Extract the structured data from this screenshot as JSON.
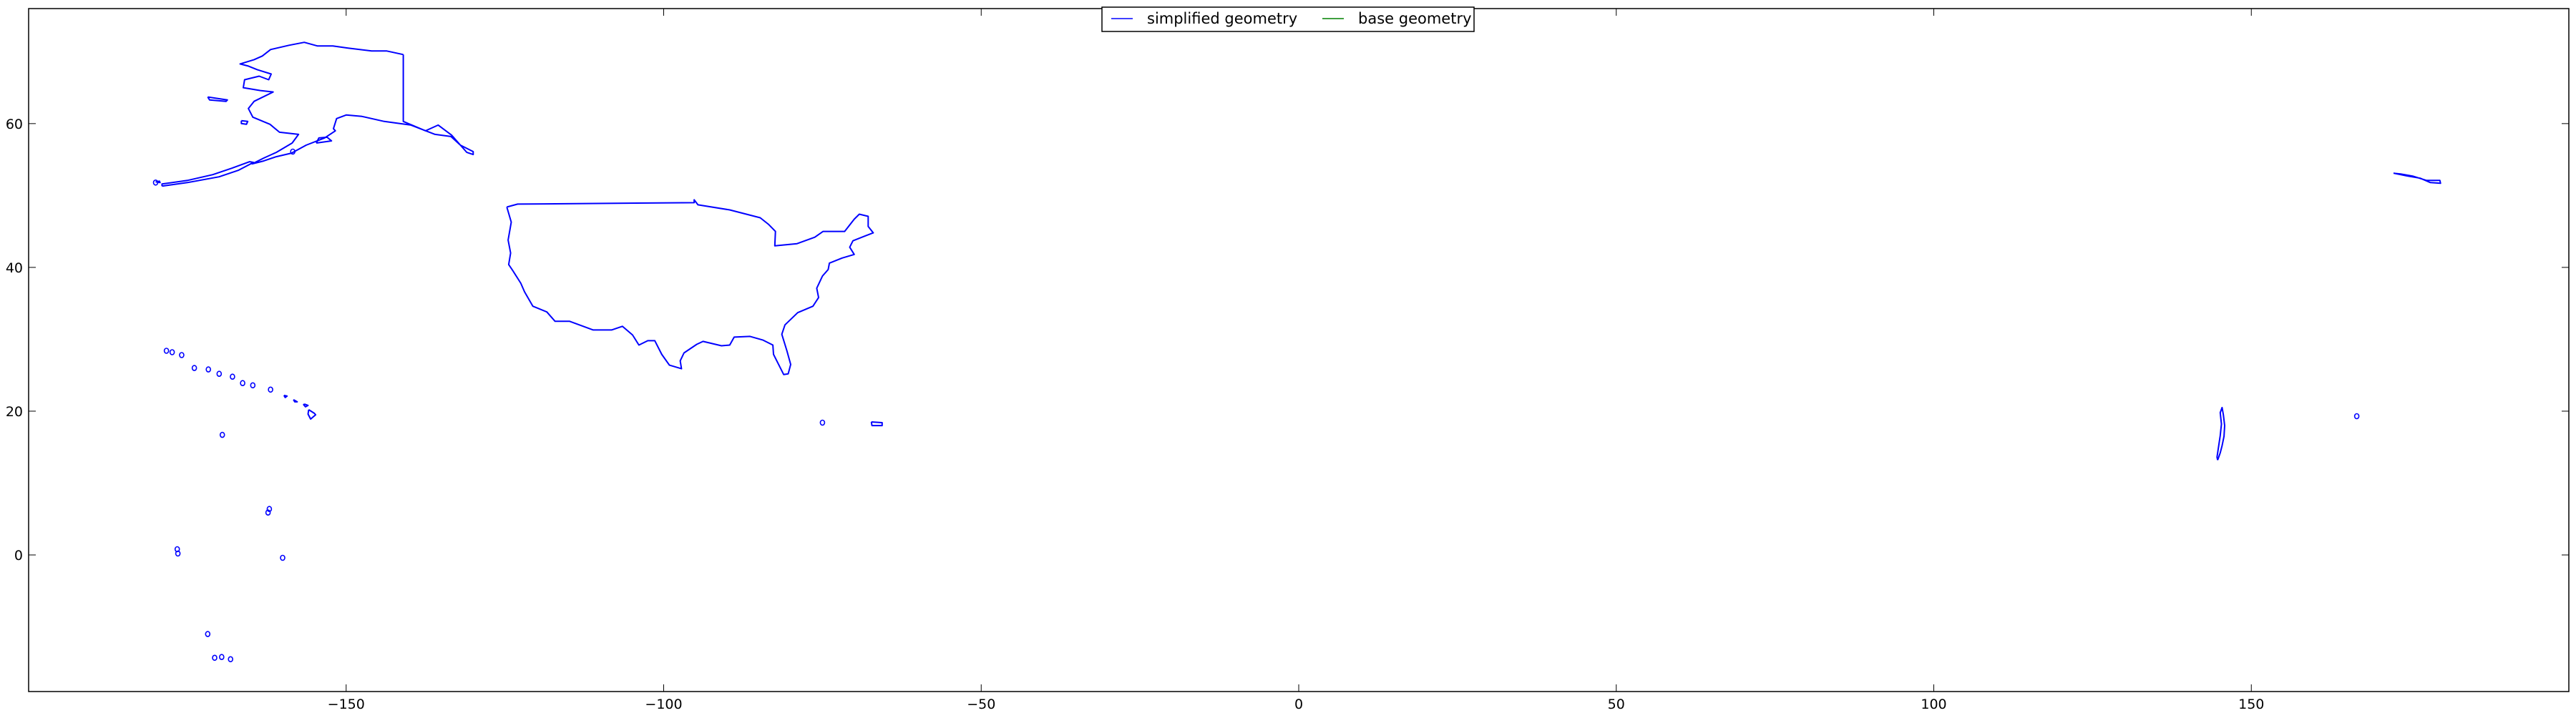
{
  "chart_data": {
    "type": "line",
    "title": "",
    "xlabel": "",
    "ylabel": "",
    "xlim": [
      -200,
      200
    ],
    "ylim": [
      -19,
      76
    ],
    "x_ticks": [
      -150,
      -100,
      -50,
      0,
      50,
      100,
      150
    ],
    "x_tick_labels": [
      "−150",
      "−100",
      "−50",
      "0",
      "50",
      "100",
      "150"
    ],
    "y_ticks": [
      0,
      20,
      40,
      60
    ],
    "y_tick_labels": [
      "0",
      "20",
      "40",
      "60"
    ],
    "grid": false,
    "legend": {
      "placement": "upper center",
      "ncol": 2,
      "entries": [
        {
          "label": "simplified geometry",
          "color": "#0000ff"
        },
        {
          "label": "base geometry",
          "color": "#008000"
        }
      ]
    },
    "series": [
      {
        "name": "simplified geometry",
        "color": "#0000ff",
        "polygons": [
          {
            "region": "Contiguous United States",
            "points": [
              [
                -124.7,
                48.4
              ],
              [
                -123.0,
                48.8
              ],
              [
                -95.2,
                49.0
              ],
              [
                -95.2,
                49.4
              ],
              [
                -94.6,
                48.7
              ],
              [
                -89.6,
                48.0
              ],
              [
                -84.8,
                46.9
              ],
              [
                -83.5,
                46.0
              ],
              [
                -82.4,
                45.0
              ],
              [
                -82.5,
                43.0
              ],
              [
                -79.0,
                43.3
              ],
              [
                -76.2,
                44.2
              ],
              [
                -74.9,
                45.0
              ],
              [
                -71.5,
                45.0
              ],
              [
                -70.0,
                46.7
              ],
              [
                -69.2,
                47.4
              ],
              [
                -67.8,
                47.1
              ],
              [
                -67.8,
                45.7
              ],
              [
                -67.0,
                44.8
              ],
              [
                -68.5,
                44.3
              ],
              [
                -70.2,
                43.7
              ],
              [
                -70.7,
                42.8
              ],
              [
                -70.0,
                41.8
              ],
              [
                -71.9,
                41.3
              ],
              [
                -73.9,
                40.6
              ],
              [
                -74.1,
                39.7
              ],
              [
                -75.0,
                38.8
              ],
              [
                -75.9,
                37.1
              ],
              [
                -75.6,
                35.8
              ],
              [
                -76.5,
                34.6
              ],
              [
                -78.9,
                33.7
              ],
              [
                -80.9,
                32.0
              ],
              [
                -81.4,
                30.7
              ],
              [
                -80.6,
                28.4
              ],
              [
                -80.0,
                26.5
              ],
              [
                -80.4,
                25.2
              ],
              [
                -81.1,
                25.1
              ],
              [
                -81.9,
                26.5
              ],
              [
                -82.7,
                27.9
              ],
              [
                -82.8,
                29.2
              ],
              [
                -84.4,
                29.9
              ],
              [
                -86.4,
                30.4
              ],
              [
                -88.9,
                30.3
              ],
              [
                -89.6,
                29.2
              ],
              [
                -90.9,
                29.1
              ],
              [
                -93.8,
                29.7
              ],
              [
                -94.8,
                29.3
              ],
              [
                -96.8,
                28.1
              ],
              [
                -97.4,
                27.0
              ],
              [
                -97.2,
                25.9
              ],
              [
                -99.1,
                26.4
              ],
              [
                -100.3,
                27.9
              ],
              [
                -101.4,
                29.8
              ],
              [
                -102.5,
                29.8
              ],
              [
                -103.9,
                29.2
              ],
              [
                -104.9,
                30.6
              ],
              [
                -106.5,
                31.8
              ],
              [
                -108.2,
                31.3
              ],
              [
                -111.1,
                31.3
              ],
              [
                -114.8,
                32.5
              ],
              [
                -117.1,
                32.5
              ],
              [
                -118.4,
                33.8
              ],
              [
                -120.6,
                34.6
              ],
              [
                -121.9,
                36.6
              ],
              [
                -122.5,
                37.8
              ],
              [
                -123.8,
                39.6
              ],
              [
                -124.4,
                40.4
              ],
              [
                -124.1,
                42.0
              ],
              [
                -124.5,
                43.8
              ],
              [
                -124.0,
                46.3
              ],
              [
                -124.7,
                48.4
              ]
            ]
          },
          {
            "region": "Alaska",
            "points": [
              [
                -141.0,
                69.6
              ],
              [
                -141.0,
                60.3
              ],
              [
                -137.5,
                59.0
              ],
              [
                -135.5,
                59.8
              ],
              [
                -133.4,
                58.4
              ],
              [
                -131.0,
                56.0
              ],
              [
                -130.0,
                55.7
              ],
              [
                -130.0,
                56.1
              ],
              [
                -132.0,
                57.0
              ],
              [
                -133.5,
                58.2
              ],
              [
                -136.0,
                58.5
              ],
              [
                -139.8,
                59.8
              ],
              [
                -144.0,
                60.3
              ],
              [
                -147.5,
                61.0
              ],
              [
                -150.0,
                61.2
              ],
              [
                -151.5,
                60.7
              ],
              [
                -152.0,
                59.3
              ],
              [
                -151.7,
                59.0
              ],
              [
                -153.4,
                58.0
              ],
              [
                -156.3,
                57.0
              ],
              [
                -158.6,
                55.9
              ],
              [
                -161.0,
                55.4
              ],
              [
                -163.0,
                54.8
              ],
              [
                -164.8,
                54.4
              ],
              [
                -163.0,
                55.2
              ],
              [
                -161.0,
                56.0
              ],
              [
                -158.5,
                57.3
              ],
              [
                -157.5,
                58.5
              ],
              [
                -160.5,
                58.8
              ],
              [
                -162.0,
                59.9
              ],
              [
                -164.7,
                60.9
              ],
              [
                -165.4,
                62.1
              ],
              [
                -164.5,
                63.1
              ],
              [
                -161.5,
                64.4
              ],
              [
                -163.5,
                64.6
              ],
              [
                -166.2,
                65.0
              ],
              [
                -166.0,
                66.1
              ],
              [
                -163.7,
                66.6
              ],
              [
                -162.2,
                66.1
              ],
              [
                -161.8,
                66.9
              ],
              [
                -164.0,
                67.5
              ],
              [
                -165.4,
                68.0
              ],
              [
                -166.7,
                68.3
              ],
              [
                -164.5,
                68.9
              ],
              [
                -163.2,
                69.4
              ],
              [
                -161.9,
                70.3
              ],
              [
                -159.0,
                70.9
              ],
              [
                -156.6,
                71.3
              ],
              [
                -154.5,
                70.8
              ],
              [
                -152.1,
                70.8
              ],
              [
                -149.7,
                70.5
              ],
              [
                -146.0,
                70.1
              ],
              [
                -143.6,
                70.1
              ],
              [
                -141.0,
                69.6
              ]
            ]
          },
          {
            "region": "Aleutian Islands",
            "points": [
              [
                -179.0,
                51.3
              ],
              [
                -175.0,
                51.8
              ],
              [
                -170.0,
                52.6
              ],
              [
                -167.0,
                53.5
              ],
              [
                -164.6,
                54.6
              ],
              [
                -165.2,
                54.7
              ],
              [
                -168.0,
                53.8
              ],
              [
                -171.0,
                52.9
              ],
              [
                -175.0,
                52.1
              ],
              [
                -179.0,
                51.6
              ],
              [
                -179.0,
                51.3
              ]
            ]
          },
          {
            "region": "Kodiak Island",
            "points": [
              [
                -154.7,
                57.3
              ],
              [
                -152.3,
                57.6
              ],
              [
                -153.0,
                58.1
              ],
              [
                -154.3,
                58.0
              ],
              [
                -154.7,
                57.3
              ]
            ]
          },
          {
            "region": "Saint Lawrence Island",
            "points": [
              [
                -171.8,
                63.7
              ],
              [
                -168.7,
                63.3
              ],
              [
                -168.9,
                63.1
              ],
              [
                -171.5,
                63.3
              ],
              [
                -171.8,
                63.7
              ]
            ]
          },
          {
            "region": "Nunivak Island",
            "points": [
              [
                -166.5,
                60.4
              ],
              [
                -165.5,
                60.3
              ],
              [
                -165.7,
                59.9
              ],
              [
                -166.5,
                60.0
              ],
              [
                -166.5,
                60.4
              ]
            ]
          },
          {
            "region": "Western Aleutians",
            "points": [
              [
                -180.0,
                51.9
              ],
              [
                -179.4,
                52.0
              ],
              [
                -179.3,
                51.8
              ],
              [
                -180.0,
                51.9
              ]
            ]
          },
          {
            "region": "Aleutians across dateline",
            "points": [
              [
                172.4,
                53.1
              ],
              [
                174.6,
                52.7
              ],
              [
                176.6,
                52.4
              ],
              [
                178.2,
                51.8
              ],
              [
                179.8,
                51.7
              ],
              [
                179.7,
                52.1
              ],
              [
                177.6,
                52.1
              ],
              [
                175.4,
                52.7
              ],
              [
                173.5,
                53.0
              ],
              [
                172.4,
                53.1
              ]
            ]
          },
          {
            "region": "Big Island",
            "points": [
              [
                -155.9,
                20.2
              ],
              [
                -155.0,
                19.7
              ],
              [
                -154.8,
                19.5
              ],
              [
                -155.6,
                18.9
              ],
              [
                -156.0,
                19.6
              ],
              [
                -155.9,
                20.2
              ]
            ]
          },
          {
            "region": "Maui",
            "points": [
              [
                -156.6,
                21.0
              ],
              [
                -156.0,
                20.8
              ],
              [
                -156.4,
                20.6
              ],
              [
                -156.7,
                20.9
              ],
              [
                -156.6,
                21.0
              ]
            ]
          },
          {
            "region": "Oahu",
            "points": [
              [
                -158.3,
                21.6
              ],
              [
                -157.7,
                21.3
              ],
              [
                -158.1,
                21.3
              ],
              [
                -158.3,
                21.6
              ]
            ]
          },
          {
            "region": "Kauai",
            "points": [
              [
                -159.8,
                22.2
              ],
              [
                -159.3,
                22.1
              ],
              [
                -159.6,
                21.9
              ],
              [
                -159.8,
                22.2
              ]
            ]
          },
          {
            "region": "Puerto Rico",
            "points": [
              [
                -67.3,
                18.5
              ],
              [
                -65.6,
                18.4
              ],
              [
                -65.6,
                18.0
              ],
              [
                -67.2,
                18.0
              ],
              [
                -67.3,
                18.5
              ]
            ]
          },
          {
            "region": "Guam and Northern Marianas",
            "points": [
              [
                144.7,
                13.2
              ],
              [
                145.1,
                14.2
              ],
              [
                145.4,
                15.2
              ],
              [
                145.7,
                16.5
              ],
              [
                145.8,
                18.0
              ],
              [
                145.6,
                19.5
              ],
              [
                145.4,
                20.5
              ],
              [
                145.1,
                19.8
              ],
              [
                145.3,
                18.2
              ],
              [
                145.1,
                16.6
              ],
              [
                144.8,
                14.8
              ],
              [
                144.6,
                13.6
              ],
              [
                144.7,
                13.2
              ]
            ]
          }
        ],
        "islets": [
          [
            -178.3,
            28.4
          ],
          [
            -177.4,
            28.2
          ],
          [
            -175.9,
            27.8
          ],
          [
            -173.9,
            26.0
          ],
          [
            -171.7,
            25.8
          ],
          [
            -170.0,
            25.2
          ],
          [
            -167.9,
            24.8
          ],
          [
            -166.3,
            23.9
          ],
          [
            -164.7,
            23.6
          ],
          [
            -161.9,
            23.0
          ],
          [
            -169.5,
            16.7
          ],
          [
            -162.1,
            6.4
          ],
          [
            -162.3,
            5.9
          ],
          [
            -176.6,
            0.8
          ],
          [
            -176.5,
            0.2
          ],
          [
            -160.0,
            -0.4
          ],
          [
            -171.8,
            -11.0
          ],
          [
            -170.7,
            -14.3
          ],
          [
            -169.6,
            -14.2
          ],
          [
            -168.2,
            -14.5
          ],
          [
            -75.0,
            18.4
          ],
          [
            166.6,
            19.3
          ],
          [
            -180.0,
            51.8
          ],
          [
            -158.4,
            56.1
          ]
        ]
      },
      {
        "name": "base geometry",
        "color": "#008000",
        "polygons": [],
        "islets": []
      }
    ]
  }
}
